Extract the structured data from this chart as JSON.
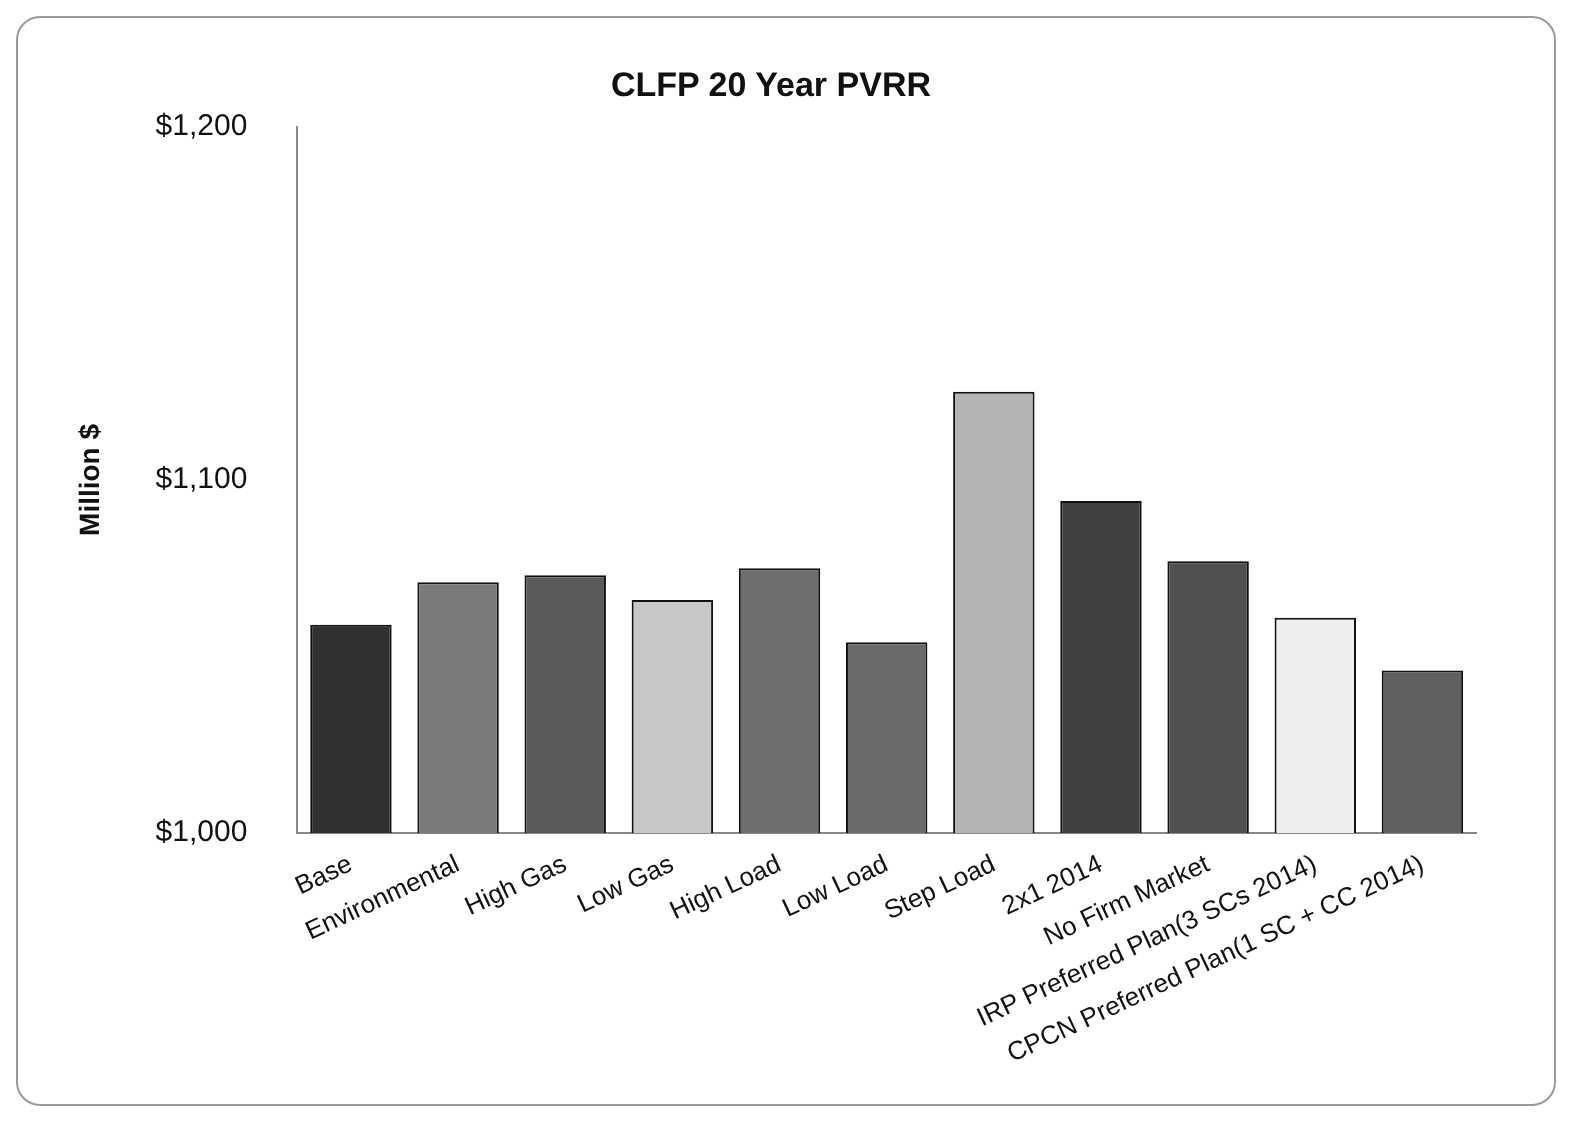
{
  "chart_data": {
    "type": "bar",
    "title": "CLFP 20 Year PVRR",
    "ylabel": "Million $",
    "categories": [
      "Base",
      "Environmental",
      "High Gas",
      "Low Gas",
      "High Load",
      "Low Load",
      "Step Load",
      "2x1 2014",
      "No Firm Market",
      "IRP Preferred Plan(3 SCs 2014)",
      "CPCN Preferred Plan(1 SC + CC 2014)"
    ],
    "values": [
      1059,
      1071,
      1073,
      1066,
      1075,
      1054,
      1125,
      1094,
      1077,
      1061,
      1046
    ],
    "colors": [
      "#303030",
      "#7a7a7a",
      "#5a5a5a",
      "#c8c8c8",
      "#6e6e6e",
      "#6a6a6a",
      "#b4b4b4",
      "#404040",
      "#505050",
      "#eeeeee",
      "#606060"
    ],
    "ylim": [
      1000,
      1200
    ],
    "yticks": [
      {
        "value": 1000,
        "label": "$1,000"
      },
      {
        "value": 1100,
        "label": "$1,100"
      },
      {
        "value": 1200,
        "label": "$1,200"
      }
    ],
    "grid": false,
    "legend": false
  }
}
